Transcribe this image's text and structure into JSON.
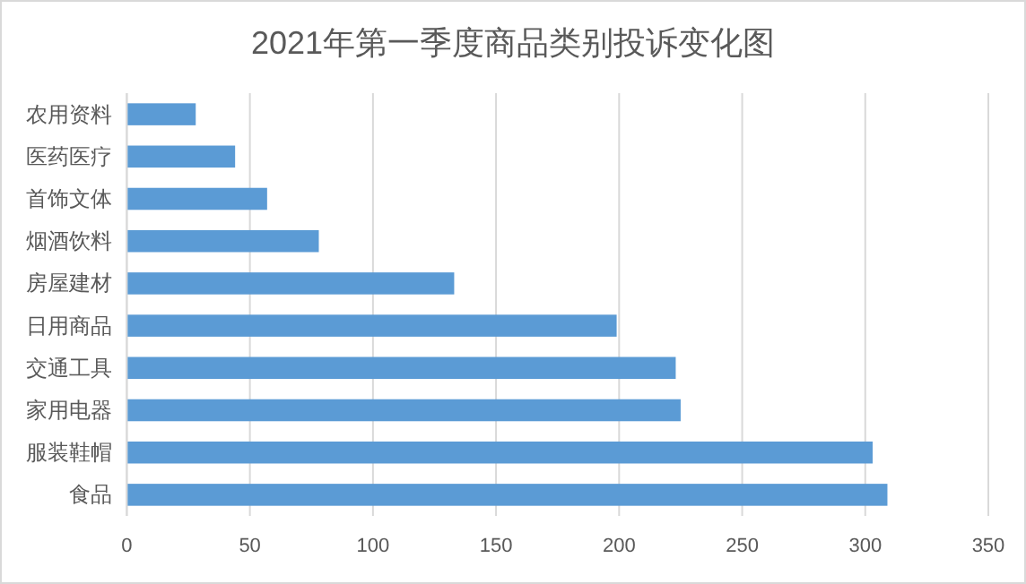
{
  "chart_data": {
    "type": "bar",
    "orientation": "horizontal",
    "title": "2021年第一季度商品类别投诉变化图",
    "categories": [
      "农用资料",
      "医药医疗",
      "首饰文体",
      "烟酒饮料",
      "房屋建材",
      "日用商品",
      "交通工具",
      "家用电器",
      "服装鞋帽",
      "食品"
    ],
    "values": [
      28,
      44,
      57,
      78,
      133,
      199,
      223,
      225,
      303,
      309
    ],
    "color": "#5b9bd5",
    "xlim": [
      0,
      350
    ],
    "xticks": [
      0,
      50,
      100,
      150,
      200,
      250,
      300,
      350
    ],
    "grid": "x"
  }
}
